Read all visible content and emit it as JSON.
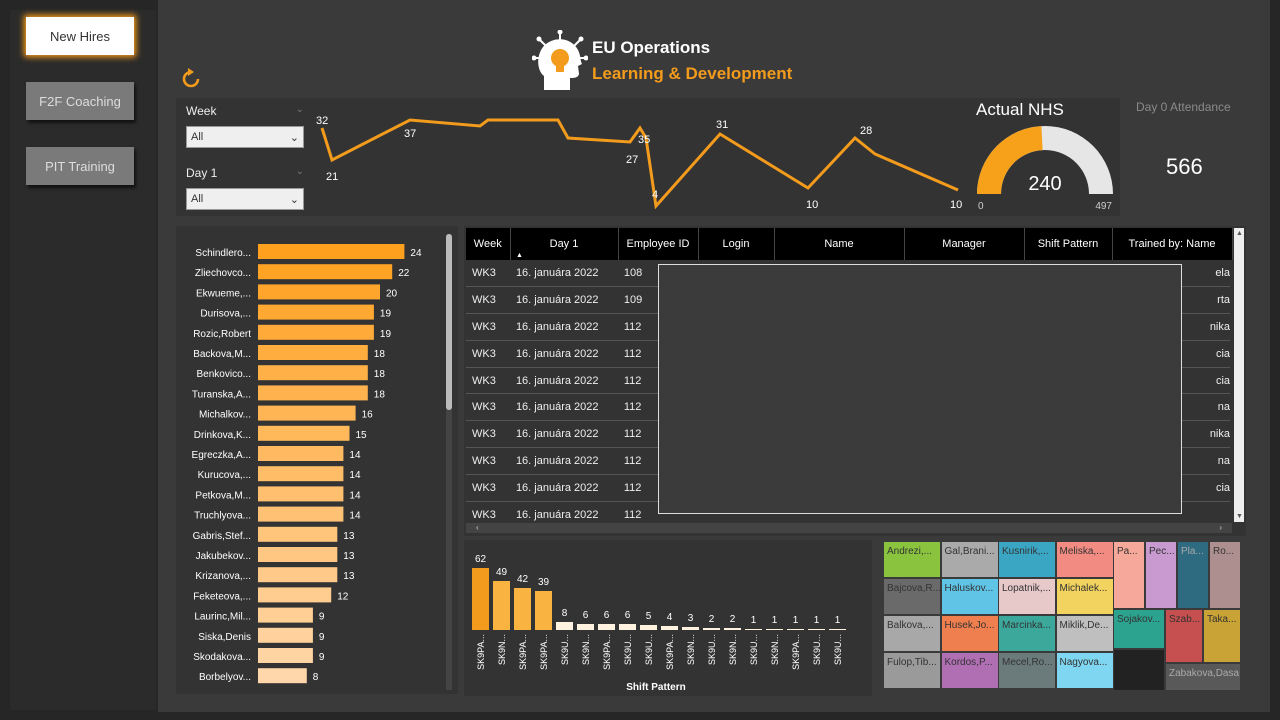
{
  "nav": {
    "new_hires": "New Hires",
    "f2f_coaching": "F2F Coaching",
    "pit_training": "PIT Training"
  },
  "logo": {
    "title": "EU Operations",
    "subtitle": "Learning & Development"
  },
  "filters": {
    "week": {
      "label": "Week",
      "value": "All"
    },
    "day1": {
      "label": "Day 1",
      "value": "All"
    }
  },
  "line_chart": {
    "labels": [
      "32",
      "21",
      "37",
      "35",
      "27",
      "4",
      "31",
      "10",
      "28",
      "10"
    ]
  },
  "gauge": {
    "title": "Actual NHS",
    "value": "240",
    "min": "0",
    "max": "497",
    "fraction": 0.483
  },
  "attendance": {
    "label": "Day 0 Attendance",
    "value": "566"
  },
  "trainers": {
    "names": [
      "Schindlero...",
      "Zliechovco...",
      "Ekwueme,...",
      "Durisova,...",
      "Rozic,Robert",
      "Backova,M...",
      "Benkovico...",
      "Turanska,A...",
      "Michalkov...",
      "Drinkova,K...",
      "Egreczka,A...",
      "Kurucova,...",
      "Petkova,M...",
      "Truchlyova...",
      "Gabris,Stef...",
      "Jakubekov...",
      "Krizanova,...",
      "Feketeova,...",
      "Laurinc,Mil...",
      "Siska,Denis",
      "Skodakova...",
      "Borbelyov..."
    ],
    "values": [
      "24",
      "22",
      "20",
      "19",
      "19",
      "18",
      "18",
      "18",
      "16",
      "15",
      "14",
      "14",
      "14",
      "14",
      "13",
      "13",
      "13",
      "12",
      "9",
      "9",
      "9",
      "8"
    ]
  },
  "table": {
    "headers": [
      "Week",
      "Day 1",
      "Employee ID",
      "Login",
      "Name",
      "Manager",
      "Shift Pattern",
      "Trained by: Name"
    ],
    "rows": [
      [
        "WK3",
        "16. januára 2022",
        "108",
        "ela"
      ],
      [
        "WK3",
        "16. januára 2022",
        "109",
        "rta"
      ],
      [
        "WK3",
        "16. januára 2022",
        "112",
        "nika"
      ],
      [
        "WK3",
        "16. januára 2022",
        "112",
        "cia"
      ],
      [
        "WK3",
        "16. januára 2022",
        "112",
        "cia"
      ],
      [
        "WK3",
        "16. januára 2022",
        "112",
        "na"
      ],
      [
        "WK3",
        "16. januára 2022",
        "112",
        "nika"
      ],
      [
        "WK3",
        "16. januára 2022",
        "112",
        "na"
      ],
      [
        "WK3",
        "16. januára 2022",
        "112",
        "cia"
      ],
      [
        "WK3",
        "16. januára 2022",
        "112"
      ]
    ]
  },
  "shift_chart": {
    "xlabel": "Shift Pattern",
    "labels": [
      "SK9PA...",
      "SK9N...",
      "SK9PA...",
      "SK9PA...",
      "SK9U...",
      "SK9N...",
      "SK9PA...",
      "SK9U...",
      "SK9U...",
      "SK9PA...",
      "SK9N...",
      "SK9U...",
      "SK9N...",
      "SK9U...",
      "SK9N...",
      "SK9PA...",
      "SK9U...",
      "SK9U..."
    ],
    "values": [
      "62",
      "49",
      "42",
      "39",
      "8",
      "6",
      "6",
      "6",
      "5",
      "4",
      "3",
      "2",
      "2",
      "1",
      "1",
      "1",
      "1",
      "1"
    ]
  },
  "treemap": {
    "cells": [
      "Andrezi,...",
      "Gal,Brani...",
      "Kusnirik,...",
      "Meliska,...",
      "Bajcova,R...",
      "Haluskov...",
      "Lopatnik,...",
      "Michalek...",
      "Balkova,...",
      "Husek,Jo...",
      "Marcinka...",
      "Miklik,De...",
      "Fulop,Tib...",
      "Kordos,P...",
      "Mecel,Ro...",
      "Nagyova...",
      "Pa...",
      "Pec...",
      "Pla...",
      "Ro...",
      "Sojakov...",
      "Szab...",
      "Taka...",
      "Zabakova,Dasa"
    ]
  },
  "colors": {
    "accent": "#f39b1d",
    "panel": "#333333"
  }
}
